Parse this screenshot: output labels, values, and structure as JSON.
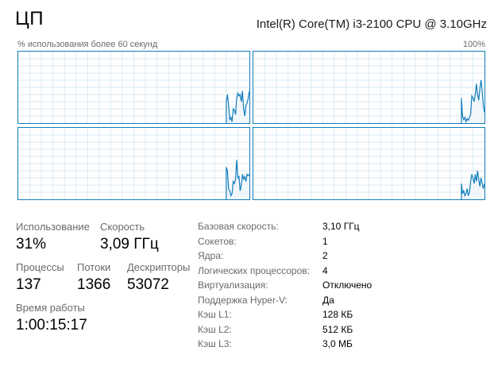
{
  "header": {
    "title": "ЦП",
    "cpu_model": "Intel(R) Core(TM) i3-2100 CPU @ 3.10GHz"
  },
  "graph_area": {
    "caption": "% использования более 60 секунд",
    "max_label": "100%",
    "line_color": "#117dbb",
    "fill_color": "#f1f6fa",
    "grid_color": "#d9eaf4",
    "cores": [
      {
        "values": [
          0,
          0,
          0,
          0,
          0,
          0,
          0,
          0,
          0,
          0,
          0,
          0,
          0,
          0,
          0,
          0,
          0,
          0,
          0,
          0,
          0,
          0,
          0,
          0,
          0,
          0,
          0,
          0,
          0,
          0,
          0,
          0,
          0,
          0,
          0,
          0,
          0,
          0,
          0,
          0,
          0,
          0,
          0,
          0,
          0,
          0,
          0,
          0,
          0,
          0,
          0,
          0,
          0,
          0,
          0,
          0,
          0,
          0,
          0,
          0,
          0,
          0,
          0,
          0,
          0,
          0,
          0,
          0,
          0,
          0,
          0,
          0,
          0,
          0,
          0,
          0,
          0,
          0,
          0,
          0,
          0,
          0,
          0,
          0,
          0,
          0,
          0,
          0,
          0,
          0,
          0,
          0,
          0,
          0,
          0,
          0,
          0,
          0,
          0,
          0,
          0,
          0,
          0,
          0,
          0,
          0,
          0,
          0,
          0,
          0,
          0,
          0,
          0,
          0,
          0,
          0,
          0,
          0,
          0,
          0,
          0,
          0,
          0,
          0,
          0,
          0,
          0,
          0,
          0,
          0,
          0,
          0,
          0,
          0,
          0,
          0,
          0,
          0,
          0,
          0,
          0,
          0,
          0,
          0,
          0,
          0,
          0,
          0,
          0,
          0,
          0,
          0,
          0,
          0,
          0,
          0,
          0,
          0,
          0,
          0,
          0,
          0,
          0,
          0,
          0,
          0,
          0,
          0,
          0,
          0,
          0,
          0,
          0,
          0,
          0,
          0,
          0,
          0,
          0,
          0,
          30,
          40,
          25,
          5,
          8,
          2,
          20,
          18,
          12,
          35,
          42,
          38,
          40,
          30,
          45,
          20,
          10,
          25,
          28,
          35,
          45
        ]
      },
      {
        "values": [
          0,
          0,
          0,
          0,
          0,
          0,
          0,
          0,
          0,
          0,
          0,
          0,
          0,
          0,
          0,
          0,
          0,
          0,
          0,
          0,
          0,
          0,
          0,
          0,
          0,
          0,
          0,
          0,
          0,
          0,
          0,
          0,
          0,
          0,
          0,
          0,
          0,
          0,
          0,
          0,
          0,
          0,
          0,
          0,
          0,
          0,
          0,
          0,
          0,
          0,
          0,
          0,
          0,
          0,
          0,
          0,
          0,
          0,
          0,
          0,
          0,
          0,
          0,
          0,
          0,
          0,
          0,
          0,
          0,
          0,
          0,
          0,
          0,
          0,
          0,
          0,
          0,
          0,
          0,
          0,
          0,
          0,
          0,
          0,
          0,
          0,
          0,
          0,
          0,
          0,
          0,
          0,
          0,
          0,
          0,
          0,
          0,
          0,
          0,
          0,
          0,
          0,
          0,
          0,
          0,
          0,
          0,
          0,
          0,
          0,
          0,
          0,
          0,
          0,
          0,
          0,
          0,
          0,
          0,
          0,
          0,
          0,
          0,
          0,
          0,
          0,
          0,
          0,
          0,
          0,
          0,
          0,
          0,
          0,
          0,
          0,
          0,
          0,
          0,
          0,
          0,
          0,
          0,
          0,
          0,
          0,
          0,
          0,
          0,
          0,
          0,
          0,
          0,
          0,
          0,
          0,
          0,
          0,
          0,
          0,
          0,
          0,
          0,
          0,
          0,
          0,
          0,
          0,
          0,
          0,
          0,
          0,
          0,
          0,
          0,
          0,
          0,
          0,
          0,
          0,
          35,
          10,
          5,
          8,
          2,
          6,
          4,
          8,
          12,
          38,
          35,
          30,
          40,
          55,
          40,
          32,
          48,
          60,
          45,
          25,
          15
        ]
      },
      {
        "values": [
          0,
          0,
          0,
          0,
          0,
          0,
          0,
          0,
          0,
          0,
          0,
          0,
          0,
          0,
          0,
          0,
          0,
          0,
          0,
          0,
          0,
          0,
          0,
          0,
          0,
          0,
          0,
          0,
          0,
          0,
          0,
          0,
          0,
          0,
          0,
          0,
          0,
          0,
          0,
          0,
          0,
          0,
          0,
          0,
          0,
          0,
          0,
          0,
          0,
          0,
          0,
          0,
          0,
          0,
          0,
          0,
          0,
          0,
          0,
          0,
          0,
          0,
          0,
          0,
          0,
          0,
          0,
          0,
          0,
          0,
          0,
          0,
          0,
          0,
          0,
          0,
          0,
          0,
          0,
          0,
          0,
          0,
          0,
          0,
          0,
          0,
          0,
          0,
          0,
          0,
          0,
          0,
          0,
          0,
          0,
          0,
          0,
          0,
          0,
          0,
          0,
          0,
          0,
          0,
          0,
          0,
          0,
          0,
          0,
          0,
          0,
          0,
          0,
          0,
          0,
          0,
          0,
          0,
          0,
          0,
          0,
          0,
          0,
          0,
          0,
          0,
          0,
          0,
          0,
          0,
          0,
          0,
          0,
          0,
          0,
          0,
          0,
          0,
          0,
          0,
          0,
          0,
          0,
          0,
          0,
          0,
          0,
          0,
          0,
          0,
          0,
          0,
          0,
          0,
          0,
          0,
          0,
          0,
          0,
          0,
          0,
          0,
          0,
          0,
          0,
          0,
          0,
          0,
          0,
          0,
          0,
          0,
          0,
          0,
          0,
          0,
          0,
          0,
          0,
          0,
          45,
          40,
          15,
          12,
          5,
          8,
          25,
          22,
          28,
          55,
          30,
          32,
          12,
          20,
          35,
          28,
          32,
          25,
          35,
          33,
          35
        ]
      },
      {
        "values": [
          0,
          0,
          0,
          0,
          0,
          0,
          0,
          0,
          0,
          0,
          0,
          0,
          0,
          0,
          0,
          0,
          0,
          0,
          0,
          0,
          0,
          0,
          0,
          0,
          0,
          0,
          0,
          0,
          0,
          0,
          0,
          0,
          0,
          0,
          0,
          0,
          0,
          0,
          0,
          0,
          0,
          0,
          0,
          0,
          0,
          0,
          0,
          0,
          0,
          0,
          0,
          0,
          0,
          0,
          0,
          0,
          0,
          0,
          0,
          0,
          0,
          0,
          0,
          0,
          0,
          0,
          0,
          0,
          0,
          0,
          0,
          0,
          0,
          0,
          0,
          0,
          0,
          0,
          0,
          0,
          0,
          0,
          0,
          0,
          0,
          0,
          0,
          0,
          0,
          0,
          0,
          0,
          0,
          0,
          0,
          0,
          0,
          0,
          0,
          0,
          0,
          0,
          0,
          0,
          0,
          0,
          0,
          0,
          0,
          0,
          0,
          0,
          0,
          0,
          0,
          0,
          0,
          0,
          0,
          0,
          0,
          0,
          0,
          0,
          0,
          0,
          0,
          0,
          0,
          0,
          0,
          0,
          0,
          0,
          0,
          0,
          0,
          0,
          0,
          0,
          0,
          0,
          0,
          0,
          0,
          0,
          0,
          0,
          0,
          0,
          0,
          0,
          0,
          0,
          0,
          0,
          0,
          0,
          0,
          0,
          0,
          0,
          0,
          0,
          0,
          0,
          0,
          0,
          0,
          0,
          0,
          0,
          0,
          0,
          0,
          0,
          0,
          0,
          0,
          0,
          22,
          8,
          12,
          5,
          8,
          15,
          5,
          10,
          25,
          35,
          30,
          22,
          35,
          25,
          40,
          28,
          18,
          30,
          22,
          15,
          22
        ]
      }
    ]
  },
  "stats": {
    "utilization": {
      "label": "Использование",
      "value": "31%"
    },
    "speed": {
      "label": "Скорость",
      "value": "3,09 ГГц"
    },
    "processes": {
      "label": "Процессы",
      "value": "137"
    },
    "threads": {
      "label": "Потоки",
      "value": "1366"
    },
    "handles": {
      "label": "Дескрипторы",
      "value": "53072"
    },
    "uptime": {
      "label": "Время работы",
      "value": "1:00:15:17"
    }
  },
  "details": [
    {
      "key": "Базовая скорость:",
      "value": "3,10 ГГц"
    },
    {
      "key": "Сокетов:",
      "value": "1"
    },
    {
      "key": "Ядра:",
      "value": "2"
    },
    {
      "key": "Логических процессоров:",
      "value": "4"
    },
    {
      "key": "Виртуализация:",
      "value": "Отключено"
    },
    {
      "key": "Поддержка Hyper-V:",
      "value": "Да"
    },
    {
      "key": "Кэш L1:",
      "value": "128 КБ"
    },
    {
      "key": "Кэш L2:",
      "value": "512 КБ"
    },
    {
      "key": "Кэш L3:",
      "value": "3,0 МБ"
    }
  ]
}
